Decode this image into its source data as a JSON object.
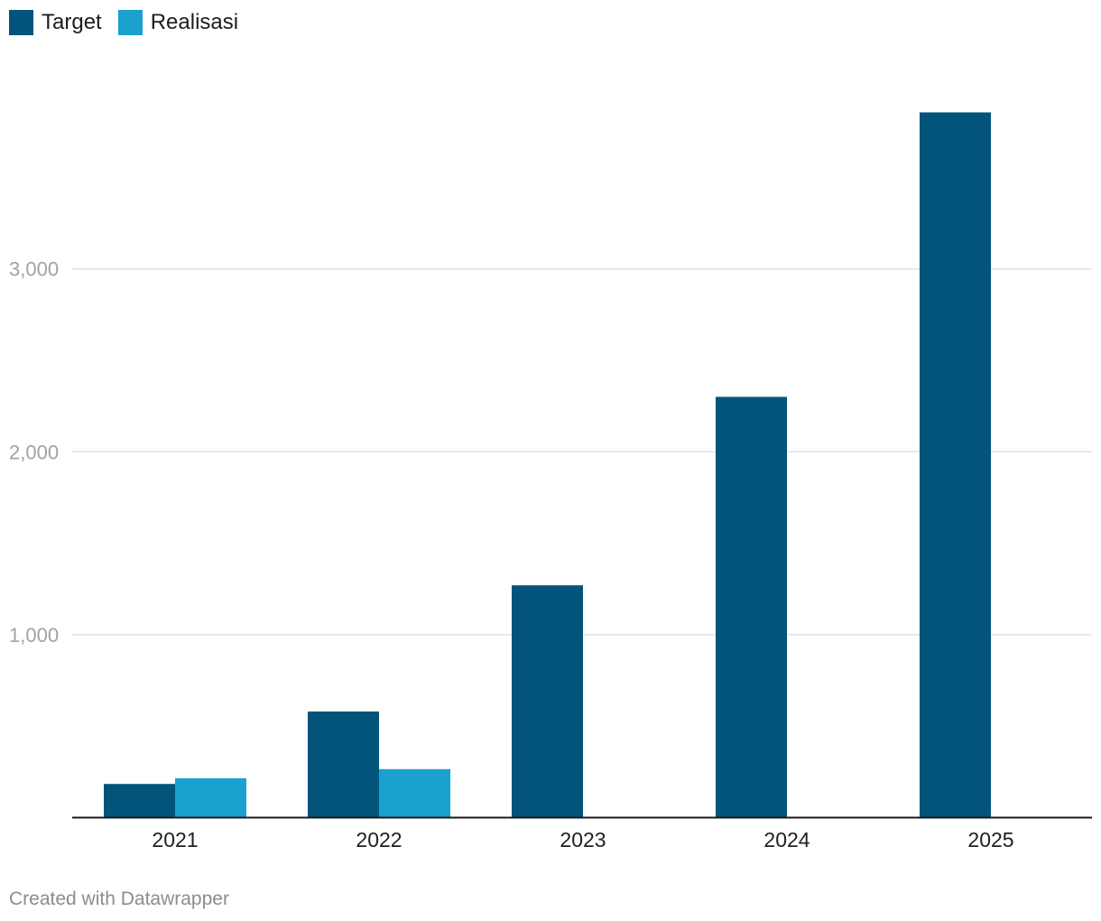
{
  "legend": {
    "items": [
      {
        "label": "Target",
        "color": "#03547a"
      },
      {
        "label": "Realisasi",
        "color": "#19a1cf"
      }
    ]
  },
  "footer": {
    "credit": "Created with Datawrapper"
  },
  "chart_data": {
    "type": "bar",
    "categories": [
      "2021",
      "2022",
      "2023",
      "2024",
      "2025"
    ],
    "series": [
      {
        "name": "Target",
        "color": "#03547a",
        "values": [
          184,
          580,
          1270,
          2300,
          3855
        ]
      },
      {
        "name": "Realisasi",
        "color": "#19a1cf",
        "values": [
          215,
          265,
          null,
          null,
          null
        ]
      }
    ],
    "y_ticks": [
      {
        "value": 1000,
        "label": "1,000"
      },
      {
        "value": 2000,
        "label": "2,000"
      },
      {
        "value": 3000,
        "label": "3,000"
      }
    ],
    "ylim": [
      0,
      4000
    ],
    "grid": true,
    "legend_position": "top-left",
    "title": "",
    "xlabel": "",
    "ylabel": ""
  }
}
